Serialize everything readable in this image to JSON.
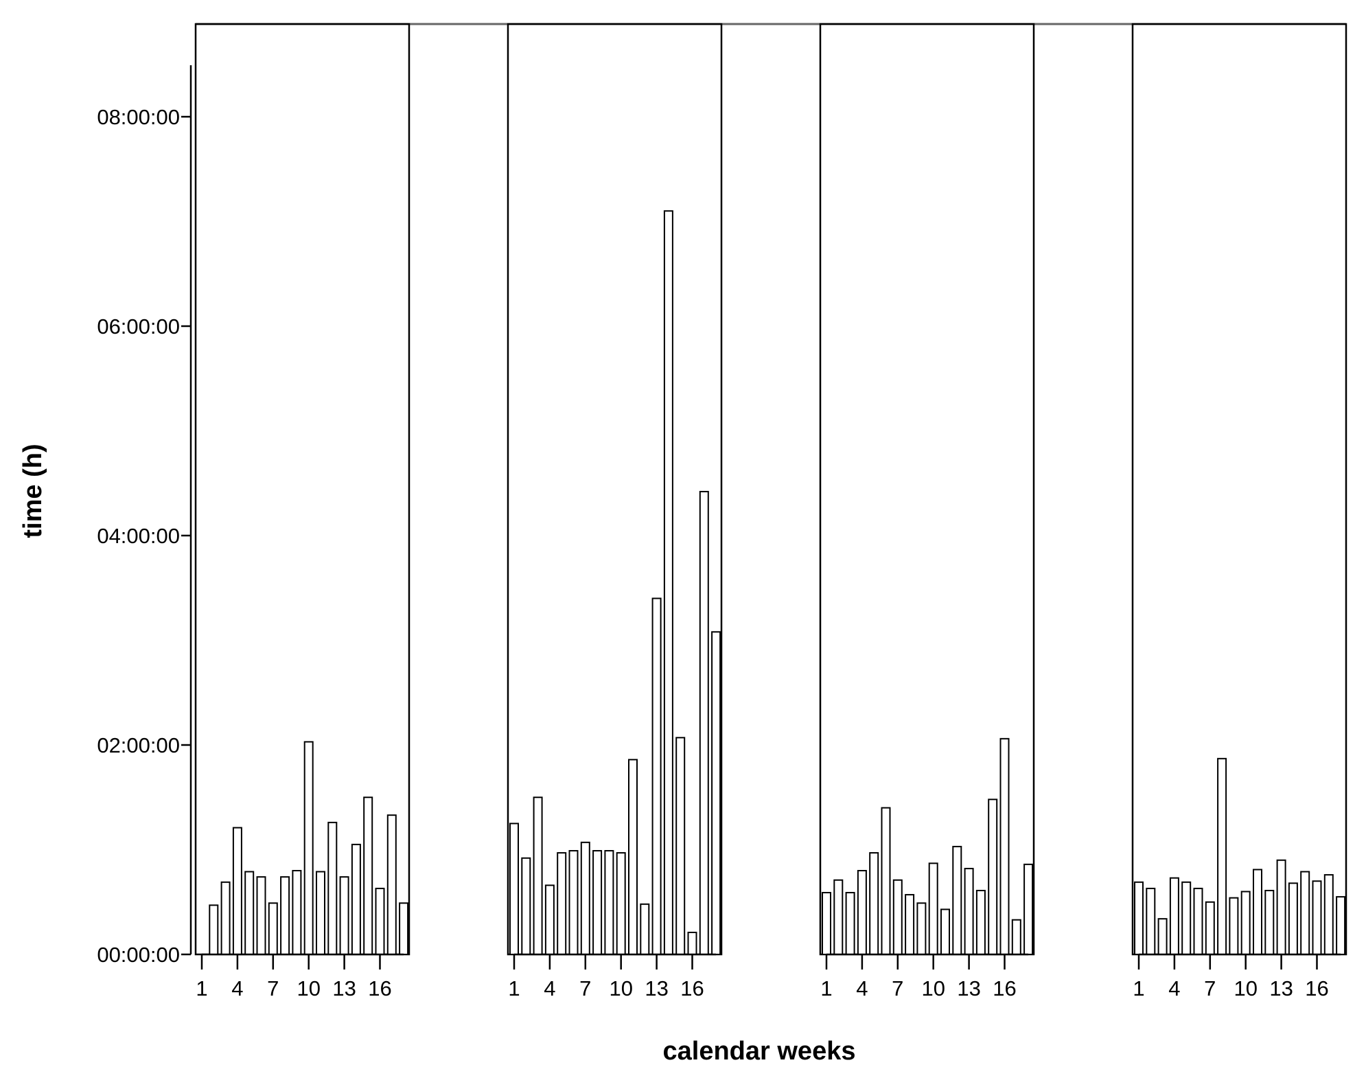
{
  "chart_data": {
    "type": "bar",
    "xlabel": "calendar weeks",
    "ylabel": "time (h)",
    "y_unit": "hours (tick labels formatted hh:mm:ss)",
    "ylim": [
      0,
      8.9
    ],
    "y_ticks": [
      0,
      2,
      4,
      6,
      8
    ],
    "y_tick_labels": [
      "00:00:00",
      "02:00:00",
      "04:00:00",
      "06:00:00",
      "08:00:00"
    ],
    "x_categories": [
      1,
      2,
      3,
      4,
      5,
      6,
      7,
      8,
      9,
      10,
      11,
      12,
      13,
      14,
      15,
      16,
      17,
      18,
      19
    ],
    "x_tick_labels": [
      "1",
      "4",
      "7",
      "10",
      "13",
      "16"
    ],
    "x_tick_weeks": [
      1,
      4,
      7,
      10,
      13,
      16
    ],
    "grid": false,
    "legend": "none",
    "bar_fill": "#ffffff",
    "bar_stroke": "#000000",
    "panels": [
      {
        "values": [
          0.0,
          0.47,
          0.69,
          1.21,
          0.79,
          0.74,
          0.49,
          0.74,
          0.8,
          2.03,
          0.79,
          1.26,
          0.74,
          1.05,
          1.5,
          0.63,
          1.33,
          0.49,
          0.0
        ]
      },
      {
        "values": [
          1.25,
          0.92,
          1.5,
          0.66,
          0.97,
          0.99,
          1.07,
          0.99,
          0.99,
          0.97,
          1.86,
          0.48,
          3.4,
          7.1,
          2.07,
          0.21,
          4.42,
          3.08,
          0.0
        ]
      },
      {
        "values": [
          0.59,
          0.71,
          0.59,
          0.8,
          0.97,
          1.4,
          0.71,
          0.57,
          0.49,
          0.87,
          0.43,
          1.03,
          0.82,
          0.61,
          1.48,
          2.06,
          0.33,
          0.86,
          0.0
        ]
      },
      {
        "values": [
          0.69,
          0.63,
          0.34,
          0.73,
          0.69,
          0.63,
          0.5,
          1.87,
          0.54,
          0.6,
          0.81,
          0.61,
          0.9,
          0.68,
          0.79,
          0.7,
          0.76,
          0.55,
          0.0
        ]
      }
    ]
  }
}
